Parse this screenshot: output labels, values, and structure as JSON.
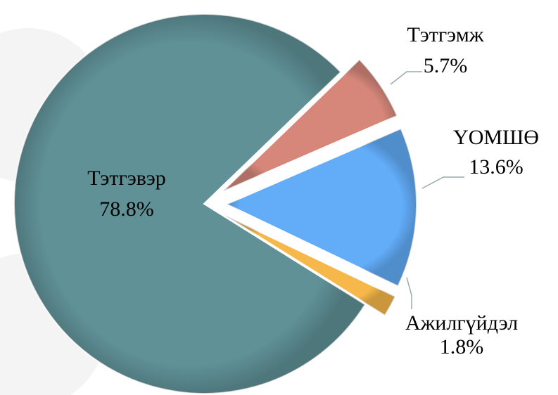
{
  "chart_data": {
    "type": "pie",
    "categories": [
      "Тэтгэмж",
      "ҮОМШӨ",
      "Ажилгүйдэл",
      "Тэтгэвэр"
    ],
    "values": [
      5.7,
      13.6,
      1.8,
      78.8
    ],
    "value_labels": [
      "5.7%",
      "13.6%",
      "1.8%",
      "78.8%"
    ],
    "colors": [
      "#d6877a",
      "#62acf8",
      "#f6b84a",
      "#5f9197"
    ]
  }
}
